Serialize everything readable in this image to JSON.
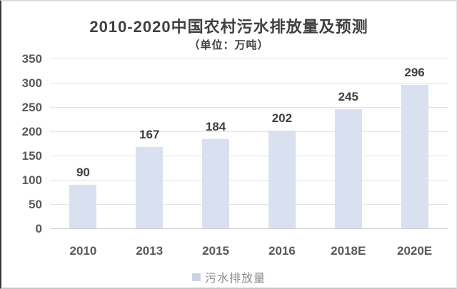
{
  "title": "2010-2020中国农村污水排放量及预测",
  "subtitle": "（单位：万吨）",
  "legend": {
    "label": "污水排放量",
    "swatch_color": "#ccd4e3"
  },
  "colors": {
    "bar_fill": "#d9e0f0",
    "gridline": "#e4e4e7",
    "baseline": "#cfcfd4",
    "title_text": "#404040",
    "axis_text": "#595959",
    "value_label_text": "#3f3f3f",
    "legend_text": "#8c8c8c"
  },
  "chart_data": {
    "type": "bar",
    "title": "2010-2020中国农村污水排放量及预测",
    "subtitle": "（单位：万吨）",
    "categories": [
      "2010",
      "2013",
      "2015",
      "2016",
      "2018E",
      "2020E"
    ],
    "series": [
      {
        "name": "污水排放量",
        "values": [
          90,
          167,
          184,
          202,
          245,
          296
        ]
      }
    ],
    "value_labels": [
      "90",
      "167",
      "184",
      "202",
      "245",
      "296"
    ],
    "xlabel": "",
    "ylabel": "",
    "ylim": [
      0,
      350
    ],
    "yticks": [
      0,
      50,
      100,
      150,
      200,
      250,
      300,
      350
    ],
    "grid": true,
    "data_labels_shown": true,
    "legend_position": "bottom"
  }
}
